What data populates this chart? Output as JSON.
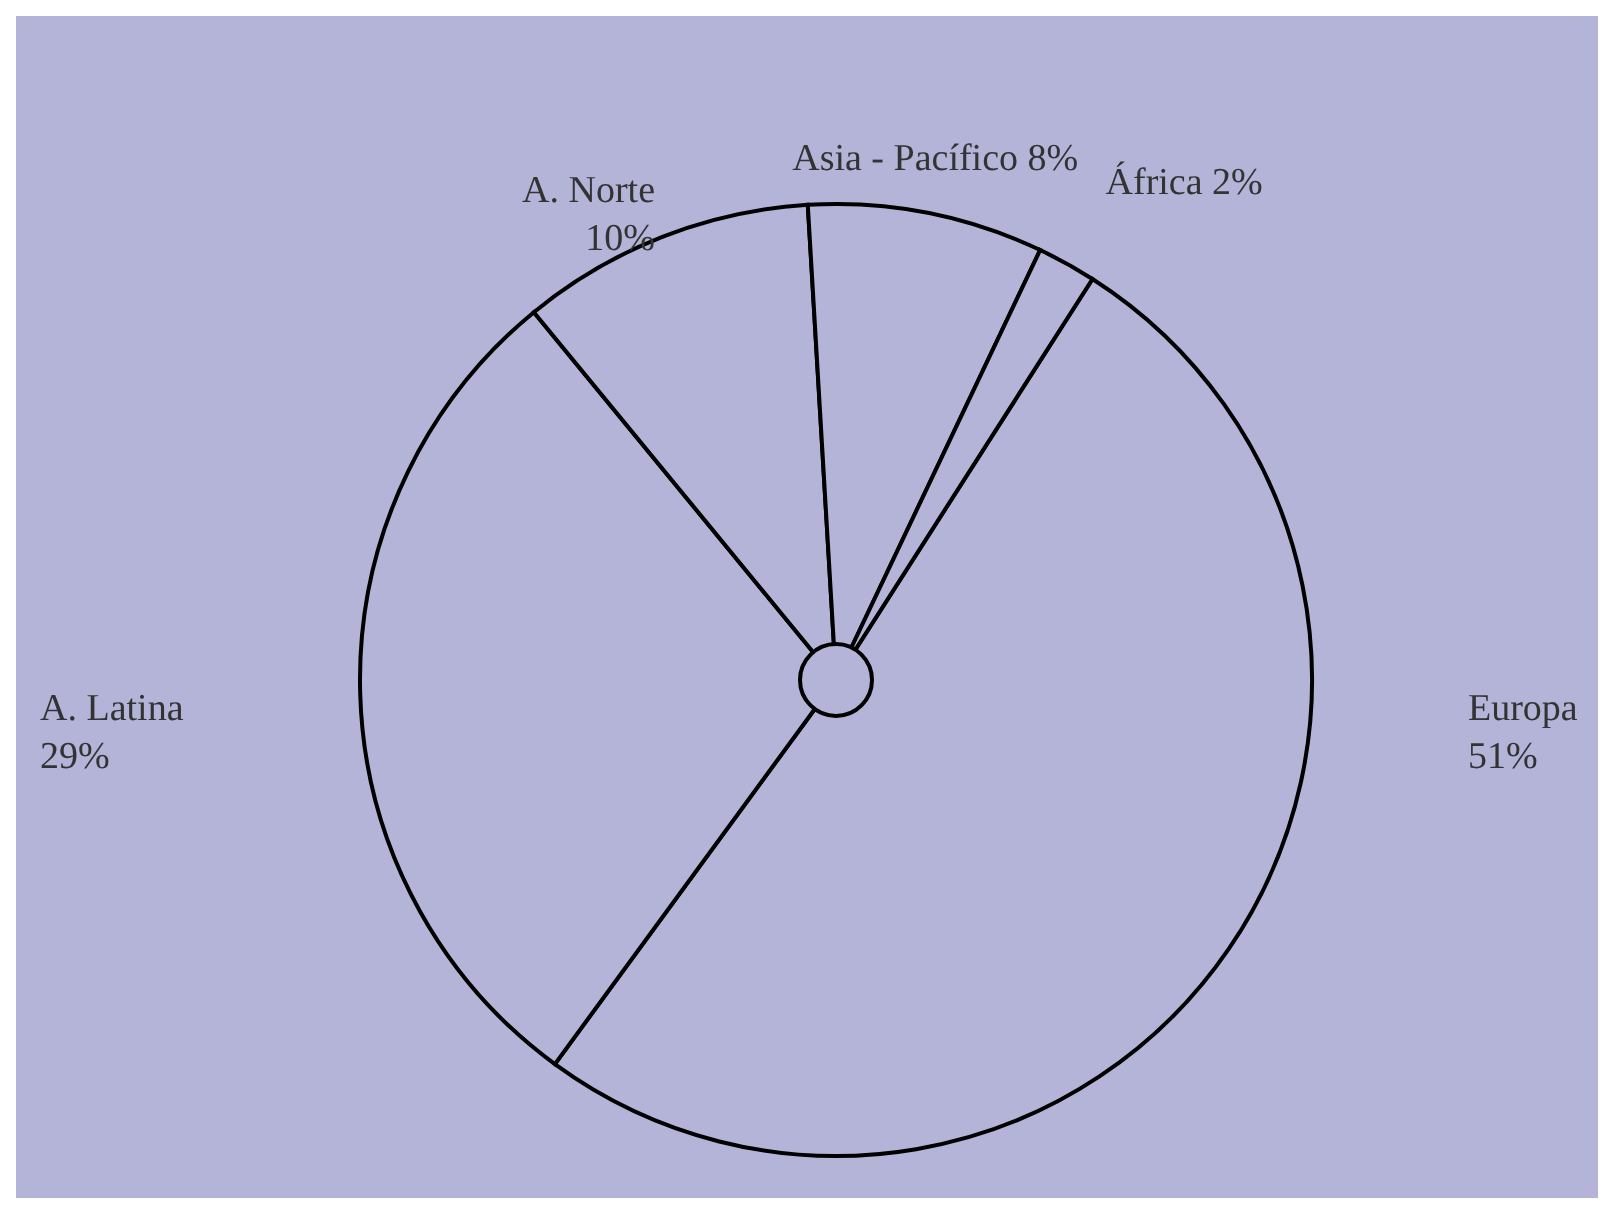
{
  "chart_data": {
    "type": "pie",
    "categories": [
      "Europa",
      "A. Latina",
      "A. Norte",
      "Asia - Pacífico",
      "África"
    ],
    "values": [
      51,
      29,
      10,
      8,
      2
    ],
    "colors": [
      "#b4b4d8",
      "#b4b4d8",
      "#b4b4d8",
      "#b4b4d8",
      "#b4b4d8"
    ],
    "value_labels": [
      "51%",
      "29%",
      "10%",
      "8%",
      "2%"
    ],
    "legend": false
  }
}
